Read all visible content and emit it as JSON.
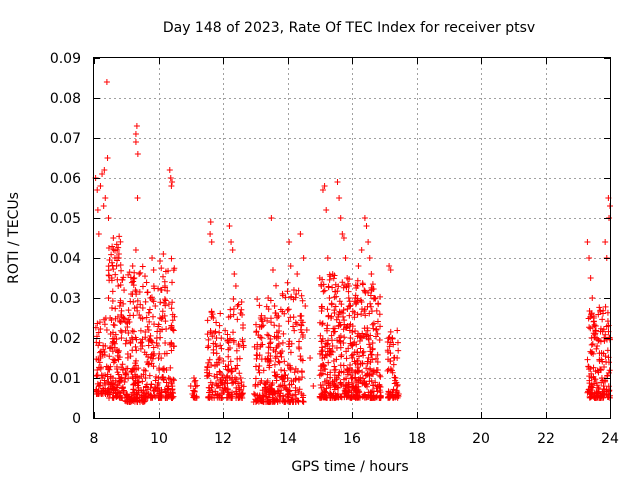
{
  "chart_data": {
    "type": "scatter",
    "title": "Day 148 of 2023, Rate Of TEC Index for receiver ptsv",
    "xlabel": "GPS time / hours",
    "ylabel": "ROTI / TECUs",
    "xlim": [
      8,
      24
    ],
    "ylim": [
      0,
      0.09
    ],
    "xticks": [
      8,
      10,
      12,
      14,
      16,
      18,
      20,
      22,
      24
    ],
    "xtick_labels": [
      "8",
      "10",
      "12",
      "14",
      "16",
      "18",
      "20",
      "22",
      "24"
    ],
    "yticks": [
      0,
      0.01,
      0.02,
      0.03,
      0.04,
      0.05,
      0.06,
      0.07,
      0.08,
      0.09
    ],
    "ytick_labels": [
      "0",
      "0.01",
      "0.02",
      "0.03",
      "0.04",
      "0.05",
      "0.06",
      "0.07",
      "0.08",
      "0.09"
    ],
    "grid": true,
    "marker": "+",
    "color": "#ff0000",
    "points": [
      [
        8.05,
        0.06
      ],
      [
        8.1,
        0.057
      ],
      [
        8.12,
        0.052
      ],
      [
        8.15,
        0.046
      ],
      [
        8.2,
        0.058
      ],
      [
        8.25,
        0.061
      ],
      [
        8.3,
        0.053
      ],
      [
        8.32,
        0.062
      ],
      [
        8.35,
        0.055
      ],
      [
        8.4,
        0.084
      ],
      [
        8.42,
        0.065
      ],
      [
        8.45,
        0.05
      ],
      [
        8.1,
        0.012
      ],
      [
        8.15,
        0.008
      ],
      [
        8.2,
        0.015
      ],
      [
        8.25,
        0.01
      ],
      [
        8.3,
        0.007
      ],
      [
        8.35,
        0.018
      ],
      [
        8.4,
        0.022
      ],
      [
        8.45,
        0.03
      ],
      [
        8.5,
        0.025
      ],
      [
        8.55,
        0.035
      ],
      [
        8.6,
        0.045
      ],
      [
        8.65,
        0.04
      ],
      [
        8.7,
        0.038
      ],
      [
        8.75,
        0.033
      ],
      [
        8.8,
        0.028
      ],
      [
        8.85,
        0.02
      ],
      [
        8.9,
        0.012
      ],
      [
        8.95,
        0.009
      ],
      [
        9.0,
        0.011
      ],
      [
        9.05,
        0.016
      ],
      [
        9.1,
        0.024
      ],
      [
        9.15,
        0.031
      ],
      [
        9.2,
        0.038
      ],
      [
        9.25,
        0.035
      ],
      [
        9.3,
        0.042
      ],
      [
        9.35,
        0.055
      ],
      [
        9.4,
        0.036
      ],
      [
        9.45,
        0.025
      ],
      [
        9.5,
        0.018
      ],
      [
        9.55,
        0.012
      ],
      [
        9.3,
        0.071
      ],
      [
        9.33,
        0.073
      ],
      [
        9.36,
        0.066
      ],
      [
        9.3,
        0.069
      ],
      [
        9.6,
        0.01
      ],
      [
        9.65,
        0.014
      ],
      [
        9.7,
        0.022
      ],
      [
        9.75,
        0.03
      ],
      [
        9.8,
        0.04
      ],
      [
        9.85,
        0.037
      ],
      [
        9.9,
        0.028
      ],
      [
        9.95,
        0.02
      ],
      [
        10.0,
        0.015
      ],
      [
        10.05,
        0.025
      ],
      [
        10.1,
        0.032
      ],
      [
        10.15,
        0.041
      ],
      [
        10.2,
        0.033
      ],
      [
        10.25,
        0.012
      ],
      [
        10.3,
        0.008
      ],
      [
        10.35,
        0.062
      ],
      [
        10.38,
        0.06
      ],
      [
        10.42,
        0.059
      ],
      [
        10.4,
        0.058
      ],
      [
        8.5,
        0.006
      ],
      [
        8.8,
        0.005
      ],
      [
        9.1,
        0.004
      ],
      [
        9.4,
        0.005
      ],
      [
        9.7,
        0.006
      ],
      [
        10.0,
        0.005
      ],
      [
        10.3,
        0.006
      ],
      [
        11.0,
        0.008
      ],
      [
        11.05,
        0.006
      ],
      [
        11.1,
        0.01
      ],
      [
        11.5,
        0.012
      ],
      [
        11.55,
        0.018
      ],
      [
        11.6,
        0.046
      ],
      [
        11.62,
        0.049
      ],
      [
        11.65,
        0.044
      ],
      [
        11.7,
        0.025
      ],
      [
        11.8,
        0.02
      ],
      [
        11.9,
        0.015
      ],
      [
        12.0,
        0.01
      ],
      [
        12.1,
        0.007
      ],
      [
        12.2,
        0.048
      ],
      [
        12.25,
        0.044
      ],
      [
        12.3,
        0.042
      ],
      [
        12.35,
        0.036
      ],
      [
        12.4,
        0.033
      ],
      [
        12.45,
        0.028
      ],
      [
        12.5,
        0.018
      ],
      [
        12.55,
        0.01
      ],
      [
        12.6,
        0.006
      ],
      [
        13.0,
        0.008
      ],
      [
        13.1,
        0.012
      ],
      [
        13.2,
        0.02
      ],
      [
        13.3,
        0.025
      ],
      [
        13.4,
        0.03
      ],
      [
        13.5,
        0.05
      ],
      [
        13.55,
        0.037
      ],
      [
        13.6,
        0.028
      ],
      [
        13.7,
        0.018
      ],
      [
        13.8,
        0.012
      ],
      [
        13.9,
        0.008
      ],
      [
        14.0,
        0.01
      ],
      [
        14.05,
        0.044
      ],
      [
        14.1,
        0.038
      ],
      [
        14.2,
        0.032
      ],
      [
        14.3,
        0.036
      ],
      [
        14.4,
        0.046
      ],
      [
        14.5,
        0.04
      ],
      [
        14.55,
        0.028
      ],
      [
        14.6,
        0.022
      ],
      [
        14.7,
        0.015
      ],
      [
        14.8,
        0.008
      ],
      [
        14.5,
        0.004
      ],
      [
        15.0,
        0.035
      ],
      [
        15.05,
        0.033
      ],
      [
        15.1,
        0.057
      ],
      [
        15.15,
        0.058
      ],
      [
        15.2,
        0.052
      ],
      [
        15.25,
        0.04
      ],
      [
        15.3,
        0.03
      ],
      [
        15.35,
        0.025
      ],
      [
        15.4,
        0.018
      ],
      [
        15.45,
        0.012
      ],
      [
        15.5,
        0.008
      ],
      [
        15.55,
        0.059
      ],
      [
        15.6,
        0.055
      ],
      [
        15.65,
        0.05
      ],
      [
        15.7,
        0.046
      ],
      [
        15.75,
        0.045
      ],
      [
        15.8,
        0.04
      ],
      [
        15.85,
        0.035
      ],
      [
        15.9,
        0.03
      ],
      [
        15.95,
        0.02
      ],
      [
        16.0,
        0.012
      ],
      [
        16.1,
        0.03
      ],
      [
        16.2,
        0.038
      ],
      [
        16.3,
        0.042
      ],
      [
        16.4,
        0.05
      ],
      [
        16.45,
        0.048
      ],
      [
        16.5,
        0.044
      ],
      [
        16.55,
        0.04
      ],
      [
        16.6,
        0.036
      ],
      [
        16.7,
        0.03
      ],
      [
        16.75,
        0.022
      ],
      [
        16.8,
        0.014
      ],
      [
        16.85,
        0.008
      ],
      [
        17.15,
        0.038
      ],
      [
        17.2,
        0.037
      ],
      [
        17.25,
        0.02
      ],
      [
        17.3,
        0.015
      ],
      [
        17.35,
        0.01
      ],
      [
        17.4,
        0.008
      ],
      [
        17.45,
        0.006
      ],
      [
        23.3,
        0.044
      ],
      [
        23.35,
        0.04
      ],
      [
        23.4,
        0.035
      ],
      [
        23.45,
        0.03
      ],
      [
        23.5,
        0.025
      ],
      [
        23.6,
        0.018
      ],
      [
        23.7,
        0.012
      ],
      [
        23.75,
        0.01
      ],
      [
        23.8,
        0.008
      ],
      [
        23.85,
        0.044
      ],
      [
        23.9,
        0.04
      ],
      [
        23.95,
        0.055
      ],
      [
        24.0,
        0.053
      ],
      [
        23.97,
        0.05
      ],
      [
        23.6,
        0.006
      ],
      [
        23.9,
        0.007
      ],
      [
        24.0,
        0.02
      ]
    ],
    "clusters": [
      {
        "x0": 8.05,
        "x1": 8.45,
        "ymin": 0.006,
        "ymax": 0.025,
        "n": 70
      },
      {
        "x0": 8.45,
        "x1": 8.9,
        "ymin": 0.005,
        "ymax": 0.046,
        "n": 140
      },
      {
        "x0": 8.9,
        "x1": 9.6,
        "ymin": 0.004,
        "ymax": 0.04,
        "n": 170
      },
      {
        "x0": 9.6,
        "x1": 10.5,
        "ymin": 0.005,
        "ymax": 0.04,
        "n": 190
      },
      {
        "x0": 11.0,
        "x1": 11.2,
        "ymin": 0.005,
        "ymax": 0.01,
        "n": 15
      },
      {
        "x0": 11.5,
        "x1": 12.2,
        "ymin": 0.005,
        "ymax": 0.028,
        "n": 120
      },
      {
        "x0": 12.2,
        "x1": 12.65,
        "ymin": 0.005,
        "ymax": 0.03,
        "n": 80
      },
      {
        "x0": 12.95,
        "x1": 13.6,
        "ymin": 0.004,
        "ymax": 0.03,
        "n": 140
      },
      {
        "x0": 13.6,
        "x1": 14.5,
        "ymin": 0.004,
        "ymax": 0.034,
        "n": 170
      },
      {
        "x0": 15.0,
        "x1": 15.6,
        "ymin": 0.005,
        "ymax": 0.036,
        "n": 170
      },
      {
        "x0": 15.6,
        "x1": 16.2,
        "ymin": 0.005,
        "ymax": 0.035,
        "n": 180
      },
      {
        "x0": 16.2,
        "x1": 16.9,
        "ymin": 0.005,
        "ymax": 0.034,
        "n": 170
      },
      {
        "x0": 17.1,
        "x1": 17.45,
        "ymin": 0.005,
        "ymax": 0.022,
        "n": 60
      },
      {
        "x0": 23.3,
        "x1": 24.0,
        "ymin": 0.005,
        "ymax": 0.028,
        "n": 170
      }
    ]
  }
}
